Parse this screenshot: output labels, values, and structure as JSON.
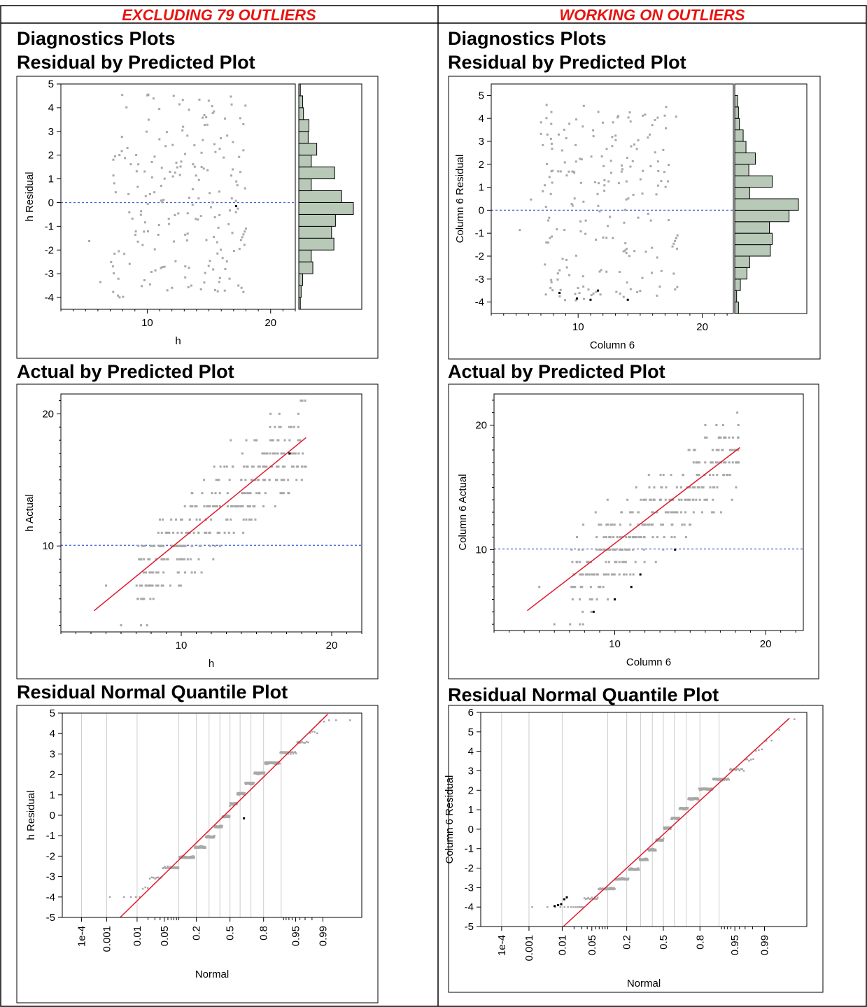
{
  "columns": [
    {
      "header": "EXCLUDING 79 OUTLIERS",
      "section_title_1": "Diagnostics Plots",
      "section_title_2": "Residual by Predicted Plot",
      "section_title_3": "Actual by Predicted Plot",
      "section_title_4": "Residual Normal Quantile Plot"
    },
    {
      "header": "WORKING ON OUTLIERS",
      "section_title_1": "Diagnostics Plots",
      "section_title_2": "Residual by Predicted Plot",
      "section_title_3": "Actual by Predicted Plot",
      "section_title_4": "Residual Normal Quantile Plot"
    }
  ],
  "colors": {
    "header_text": "#e8140f",
    "point_gray": "#a8a8a8",
    "point_excluded": "#000000",
    "reference_line_blue": "#3a5fd6",
    "fit_line_red": "#e0192c",
    "histogram_fill": "#b8c9b8",
    "quantile_grid": "#cccccc"
  },
  "chart_data": [
    {
      "type": "scatter",
      "title": "Residual by Predicted Plot",
      "xlabel": "h",
      "ylabel": "h Residual",
      "xlim": [
        3,
        22
      ],
      "ylim": [
        -4.5,
        5
      ],
      "xticks": [
        10,
        20
      ],
      "yticks": [
        -4,
        -3,
        -2,
        -1,
        0,
        1,
        2,
        3,
        4,
        5
      ],
      "reference_line_y": 0,
      "histogram": {
        "bin_edges": [
          -4.5,
          -4,
          -3.5,
          -3,
          -2.5,
          -2,
          -1.5,
          -1,
          -0.5,
          0,
          0.5,
          1,
          1.5,
          2,
          2.5,
          3,
          3.5,
          4,
          4.5,
          5
        ],
        "counts": [
          2,
          3,
          5,
          18,
          16,
          45,
          42,
          47,
          70,
          55,
          16,
          46,
          16,
          23,
          12,
          13,
          6,
          5,
          2
        ]
      },
      "excluded_points": [
        [
          17.2,
          -0.15
        ]
      ],
      "seed": 11
    },
    {
      "type": "scatter",
      "title": "Residual by Predicted Plot",
      "xlabel": "Column 6",
      "ylabel": "Column 6 Residual",
      "xlim": [
        3,
        22.5
      ],
      "ylim": [
        -4.5,
        5.5
      ],
      "xticks": [
        10,
        20
      ],
      "yticks": [
        -4,
        -3,
        -2,
        -1,
        0,
        1,
        2,
        3,
        4,
        5
      ],
      "reference_line_y": 0,
      "histogram": {
        "bin_edges": [
          -4.5,
          -4,
          -3.5,
          -3,
          -2.5,
          -2,
          -1.5,
          -1,
          -0.5,
          0,
          0.5,
          1,
          1.5,
          2,
          2.5,
          3,
          3.5,
          4,
          4.5,
          5,
          5.5
        ],
        "counts": [
          4,
          2,
          6,
          13,
          16,
          38,
          40,
          37,
          58,
          68,
          16,
          40,
          15,
          22,
          12,
          9,
          5,
          4,
          3,
          0
        ]
      },
      "excluded_points": [
        [
          8.5,
          -3.6
        ],
        [
          9.9,
          -3.85
        ],
        [
          11.0,
          -3.9
        ],
        [
          11.6,
          -3.5
        ],
        [
          14.0,
          -3.9
        ]
      ],
      "seed": 23
    },
    {
      "type": "scatter",
      "title": "Actual by Predicted Plot",
      "xlabel": "h",
      "ylabel": "h Actual",
      "xlim": [
        2,
        22
      ],
      "ylim": [
        3.5,
        21.5
      ],
      "xticks": [
        10,
        20
      ],
      "yticks": [
        10,
        20
      ],
      "reference_line_y": 10.05,
      "fit_line": [
        [
          4.2,
          5.1
        ],
        [
          18.3,
          18.2
        ]
      ],
      "excluded_points": [
        [
          17.2,
          17.0
        ]
      ],
      "seed": 37
    },
    {
      "type": "scatter",
      "title": "Actual by Predicted Plot",
      "xlabel": "Column 6",
      "ylabel": "Column 6 Actual",
      "xlim": [
        2,
        22.5
      ],
      "ylim": [
        3.5,
        22.5
      ],
      "xticks": [
        10,
        20
      ],
      "yticks": [
        10,
        20
      ],
      "reference_line_y": 10.05,
      "fit_line": [
        [
          4.2,
          5.1
        ],
        [
          18.3,
          18.2
        ]
      ],
      "excluded_points": [
        [
          8.6,
          5.0
        ],
        [
          10.0,
          6.0
        ],
        [
          11.1,
          7.0
        ],
        [
          11.7,
          8.0
        ],
        [
          14.0,
          10.0
        ]
      ],
      "seed": 41
    },
    {
      "type": "scatter",
      "title": "Residual Normal Quantile Plot",
      "xlabel": "Normal",
      "ylabel": "h Residual",
      "xlim": [
        -4.2,
        3.3
      ],
      "ylim": [
        -5,
        5
      ],
      "yticks": [
        -5,
        -4,
        -3,
        -2,
        -1,
        0,
        1,
        2,
        3,
        4,
        5
      ],
      "prob_tick_labels": [
        "1e-4",
        "0.001",
        "0.01",
        "0.05",
        "0.2",
        "0.5",
        "0.8",
        "0.95",
        "0.99"
      ],
      "prob_tick_values": [
        0.0001,
        0.001,
        0.01,
        0.05,
        0.2,
        0.5,
        0.8,
        0.95,
        0.99
      ],
      "grid_probs": [
        0.0001,
        0.001,
        0.01,
        0.1,
        0.2,
        0.3,
        0.4,
        0.5,
        0.6,
        0.7,
        0.8,
        0.9
      ],
      "fit_line": [
        [
          -2.75,
          -5
        ],
        [
          2.45,
          4.95
        ]
      ],
      "excluded_points": [
        [
          0.35,
          -0.15
        ]
      ],
      "n": 380
    },
    {
      "type": "scatter",
      "title": "Residual Normal Quantile Plot",
      "xlabel": "Normal",
      "ylabel": "Column 6 Residual",
      "xlim": [
        -4.2,
        3.3
      ],
      "ylim": [
        -5,
        6
      ],
      "yticks": [
        -5,
        -4,
        -3,
        -2,
        -1,
        0,
        1,
        2,
        3,
        4,
        5,
        6
      ],
      "prob_tick_labels": [
        "1e-4",
        "0.001",
        "0.01",
        "0.05",
        "0.2",
        "0.5",
        "0.8",
        "0.95",
        "0.99"
      ],
      "prob_tick_values": [
        0.0001,
        0.001,
        0.01,
        0.05,
        0.2,
        0.5,
        0.8,
        0.95,
        0.99
      ],
      "grid_probs": [
        0.0001,
        0.001,
        0.01,
        0.1,
        0.2,
        0.3,
        0.4,
        0.5,
        0.6,
        0.7,
        0.8,
        0.9
      ],
      "fit_line": [
        [
          -2.3,
          -5
        ],
        [
          2.9,
          5.7
        ]
      ],
      "excluded_points": [
        [
          -2.5,
          -3.95
        ],
        [
          -2.42,
          -3.9
        ],
        [
          -2.35,
          -3.85
        ],
        [
          -2.28,
          -3.6
        ],
        [
          -2.22,
          -3.5
        ]
      ],
      "n": 390
    }
  ]
}
